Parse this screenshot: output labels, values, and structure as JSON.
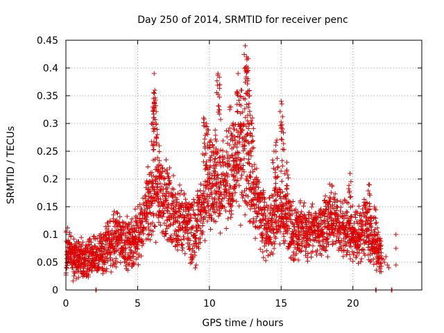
{
  "chart_data": {
    "type": "scatter",
    "title": "Day 250 of 2014, SRMTID for receiver penc",
    "xlabel": "GPS time / hours",
    "ylabel": "SRMTID / TECUs",
    "xlim": [
      0,
      24.8
    ],
    "ylim": [
      0,
      0.45
    ],
    "xticks": [
      0,
      5,
      10,
      15,
      20
    ],
    "yticks": [
      0,
      0.05,
      0.1,
      0.15,
      0.2,
      0.25,
      0.3,
      0.35,
      0.4,
      0.45
    ],
    "grid": true,
    "marker": "+",
    "series": [
      {
        "name": "SRMTID",
        "color": "#dd0000",
        "envelope": [
          [
            0.0,
            0.07,
            0.05
          ],
          [
            0.5,
            0.06,
            0.05
          ],
          [
            1.0,
            0.055,
            0.04
          ],
          [
            1.5,
            0.06,
            0.045
          ],
          [
            2.0,
            0.06,
            0.05
          ],
          [
            2.5,
            0.065,
            0.05
          ],
          [
            3.0,
            0.08,
            0.055
          ],
          [
            3.5,
            0.095,
            0.06
          ],
          [
            4.0,
            0.09,
            0.055
          ],
          [
            4.5,
            0.08,
            0.05
          ],
          [
            5.0,
            0.1,
            0.06
          ],
          [
            5.5,
            0.13,
            0.07
          ],
          [
            6.0,
            0.18,
            0.1
          ],
          [
            6.5,
            0.17,
            0.09
          ],
          [
            7.0,
            0.16,
            0.09
          ],
          [
            7.5,
            0.14,
            0.08
          ],
          [
            8.0,
            0.13,
            0.07
          ],
          [
            8.5,
            0.11,
            0.06
          ],
          [
            9.0,
            0.1,
            0.07
          ],
          [
            9.5,
            0.15,
            0.09
          ],
          [
            10.0,
            0.2,
            0.1
          ],
          [
            10.5,
            0.2,
            0.1
          ],
          [
            11.0,
            0.19,
            0.1
          ],
          [
            11.5,
            0.2,
            0.1
          ],
          [
            12.0,
            0.22,
            0.12
          ],
          [
            12.5,
            0.25,
            0.13
          ],
          [
            13.0,
            0.19,
            0.09
          ],
          [
            13.5,
            0.14,
            0.08
          ],
          [
            14.0,
            0.11,
            0.06
          ],
          [
            14.5,
            0.13,
            0.07
          ],
          [
            15.0,
            0.15,
            0.09
          ],
          [
            15.5,
            0.12,
            0.07
          ],
          [
            16.0,
            0.1,
            0.06
          ],
          [
            16.5,
            0.11,
            0.06
          ],
          [
            17.0,
            0.1,
            0.06
          ],
          [
            17.5,
            0.11,
            0.06
          ],
          [
            18.0,
            0.12,
            0.07
          ],
          [
            18.5,
            0.13,
            0.07
          ],
          [
            19.0,
            0.12,
            0.07
          ],
          [
            19.5,
            0.11,
            0.06
          ],
          [
            20.0,
            0.1,
            0.06
          ],
          [
            20.5,
            0.1,
            0.06
          ],
          [
            21.0,
            0.12,
            0.07
          ],
          [
            21.5,
            0.08,
            0.05
          ],
          [
            22.0,
            0.07,
            0.04
          ]
        ],
        "spikes": [
          [
            6.05,
            0.33
          ],
          [
            6.1,
            0.31
          ],
          [
            6.15,
            0.39
          ],
          [
            6.2,
            0.36
          ],
          [
            6.3,
            0.3
          ],
          [
            6.5,
            0.26
          ],
          [
            9.6,
            0.31
          ],
          [
            9.8,
            0.3
          ],
          [
            10.1,
            0.27
          ],
          [
            10.4,
            0.25
          ],
          [
            10.6,
            0.39
          ],
          [
            10.7,
            0.37
          ],
          [
            11.5,
            0.33
          ],
          [
            11.7,
            0.29
          ],
          [
            12.0,
            0.39
          ],
          [
            12.2,
            0.36
          ],
          [
            12.5,
            0.44
          ],
          [
            12.6,
            0.42
          ],
          [
            12.7,
            0.4
          ],
          [
            12.8,
            0.35
          ],
          [
            13.0,
            0.31
          ],
          [
            14.5,
            0.25
          ],
          [
            14.7,
            0.27
          ],
          [
            15.0,
            0.34
          ],
          [
            15.1,
            0.29
          ],
          [
            15.4,
            0.23
          ],
          [
            19.8,
            0.21
          ],
          [
            21.1,
            0.19
          ],
          [
            21.5,
            0.15
          ]
        ],
        "tail": [
          [
            22.1,
            0.055
          ],
          [
            22.2,
            0.05
          ],
          [
            22.3,
            0.06
          ],
          [
            22.4,
            0.045
          ],
          [
            22.5,
            0.04
          ],
          [
            23.0,
            0.1
          ],
          [
            23.0,
            0.075
          ],
          [
            23.0,
            0.045
          ]
        ],
        "zeros": [
          2.1,
          21.6,
          22.7
        ]
      }
    ]
  }
}
